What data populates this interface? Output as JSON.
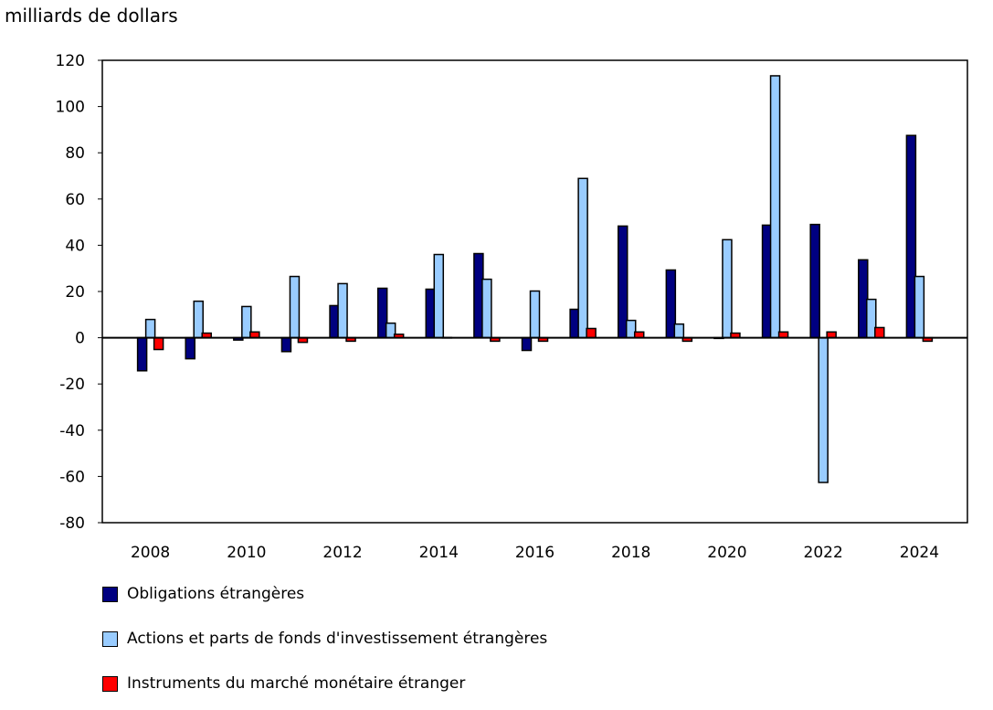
{
  "chart_data": {
    "type": "bar",
    "ylabel": "milliards de dollars",
    "ylim": [
      -80,
      120
    ],
    "yticks": [
      -80,
      -60,
      -40,
      -20,
      0,
      20,
      40,
      60,
      80,
      100,
      120
    ],
    "categories": [
      "2008",
      "2009",
      "2010",
      "2011",
      "2012",
      "2013",
      "2014",
      "2015",
      "2016",
      "2017",
      "2018",
      "2019",
      "2020",
      "2021",
      "2022",
      "2023",
      "2024"
    ],
    "xtick_labels": [
      "2008",
      "2010",
      "2012",
      "2014",
      "2016",
      "2018",
      "2020",
      "2022",
      "2024"
    ],
    "legend_placement": "bottom",
    "grid": false,
    "series": [
      {
        "name": "Obligations étrangères",
        "color": "#000080",
        "values": [
          -14.3,
          -9.1,
          -1.0,
          -6.0,
          13.9,
          21.4,
          21.0,
          36.4,
          -5.5,
          12.3,
          48.3,
          29.3,
          -0.3,
          48.7,
          49.0,
          33.7,
          87.5
        ]
      },
      {
        "name": "Actions et parts de fonds d'investissement étrangères",
        "color": "#99ccff",
        "values": [
          7.9,
          15.8,
          13.5,
          26.5,
          23.4,
          6.3,
          36.0,
          25.3,
          20.2,
          68.9,
          7.5,
          5.9,
          42.4,
          113.3,
          -62.6,
          16.6,
          26.5
        ]
      },
      {
        "name": "Instruments du marché monétaire étranger",
        "color": "#ff0000",
        "values": [
          -5.1,
          2.0,
          2.5,
          -2.0,
          -1.5,
          1.5,
          0.1,
          -1.5,
          -1.5,
          4.0,
          2.5,
          -1.5,
          2.0,
          2.5,
          2.5,
          4.4,
          -1.5
        ]
      }
    ]
  }
}
